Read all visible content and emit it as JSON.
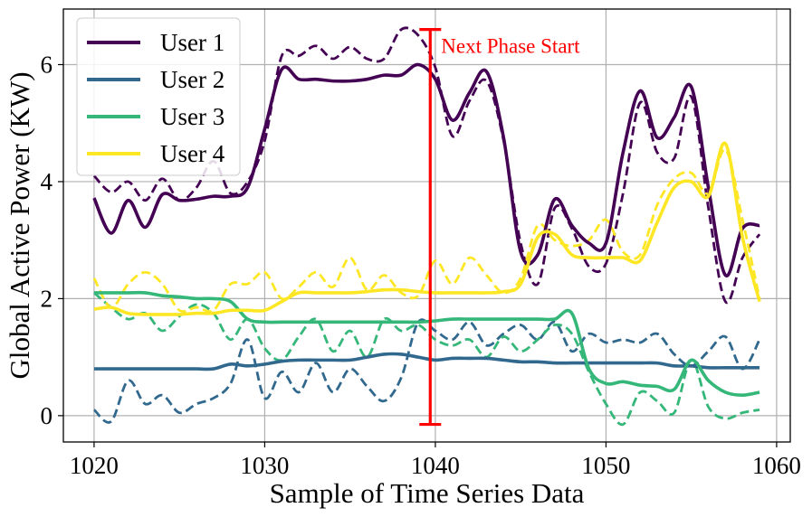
{
  "chart_data": {
    "type": "line",
    "title": "",
    "xlabel": "Sample of Time Series Data",
    "ylabel": "Global Active Power (KW)",
    "xlim": [
      1018.2,
      1060.8
    ],
    "ylim": [
      -0.45,
      6.95
    ],
    "xticks": [
      1020,
      1030,
      1040,
      1050,
      1060
    ],
    "yticks": [
      0,
      2,
      4,
      6
    ],
    "grid": true,
    "legend_position": "top-left",
    "x": [
      1020,
      1021,
      1022,
      1023,
      1024,
      1025,
      1026,
      1027,
      1028,
      1029,
      1030,
      1031,
      1032,
      1033,
      1034,
      1035,
      1036,
      1037,
      1038,
      1039,
      1040,
      1041,
      1042,
      1043,
      1044,
      1045,
      1046,
      1047,
      1048,
      1049,
      1050,
      1051,
      1052,
      1053,
      1054,
      1055,
      1056,
      1057,
      1058,
      1059
    ],
    "series": [
      {
        "name": "User 1",
        "color": "#440154",
        "solid": [
          3.72,
          3.12,
          3.68,
          3.22,
          3.78,
          3.68,
          3.7,
          3.75,
          3.75,
          3.9,
          4.9,
          5.92,
          5.75,
          5.75,
          5.72,
          5.72,
          5.75,
          5.82,
          5.82,
          6.0,
          5.75,
          5.05,
          5.52,
          5.88,
          4.75,
          2.8,
          2.75,
          3.7,
          3.25,
          2.95,
          2.95,
          4.5,
          5.55,
          4.75,
          5.1,
          5.62,
          3.9,
          2.4,
          3.2,
          3.25
        ],
        "dashed": [
          4.1,
          3.82,
          4.0,
          3.68,
          4.05,
          3.68,
          3.9,
          4.35,
          3.8,
          4.0,
          4.7,
          6.15,
          6.15,
          6.32,
          6.1,
          6.3,
          6.1,
          6.1,
          6.6,
          6.5,
          5.95,
          4.78,
          5.38,
          5.72,
          4.7,
          2.95,
          2.25,
          3.55,
          3.2,
          2.55,
          2.6,
          3.8,
          5.35,
          4.5,
          4.4,
          5.45,
          3.55,
          1.95,
          2.7,
          3.1
        ]
      },
      {
        "name": "User 2",
        "color": "#31688e",
        "solid": [
          0.8,
          0.8,
          0.8,
          0.8,
          0.8,
          0.8,
          0.8,
          0.8,
          0.88,
          0.85,
          0.88,
          0.93,
          0.95,
          0.95,
          0.95,
          0.95,
          1.0,
          1.05,
          1.05,
          1.0,
          0.95,
          0.98,
          0.98,
          0.98,
          0.95,
          0.92,
          0.92,
          0.9,
          0.9,
          0.9,
          0.9,
          0.9,
          0.9,
          0.9,
          0.85,
          0.85,
          0.82,
          0.82,
          0.82,
          0.82
        ],
        "dashed": [
          0.1,
          -0.1,
          0.6,
          0.2,
          0.35,
          0.05,
          0.2,
          0.3,
          0.55,
          1.3,
          0.3,
          0.75,
          0.4,
          0.9,
          0.4,
          0.8,
          0.5,
          0.25,
          0.65,
          1.6,
          1.45,
          1.3,
          1.6,
          1.2,
          1.4,
          1.55,
          1.3,
          1.6,
          1.1,
          1.4,
          1.25,
          1.3,
          1.25,
          1.4,
          1.05,
          0.85,
          1.1,
          1.35,
          0.8,
          1.3
        ]
      },
      {
        "name": "User 3",
        "color": "#35b779",
        "solid": [
          2.1,
          2.1,
          2.1,
          2.1,
          2.05,
          2.03,
          2.0,
          2.0,
          1.95,
          1.65,
          1.6,
          1.6,
          1.6,
          1.6,
          1.6,
          1.6,
          1.6,
          1.6,
          1.6,
          1.6,
          1.62,
          1.65,
          1.65,
          1.65,
          1.65,
          1.65,
          1.65,
          1.65,
          1.75,
          0.8,
          0.55,
          0.58,
          0.52,
          0.5,
          0.45,
          0.95,
          0.6,
          0.4,
          0.35,
          0.4
        ],
        "dashed": [
          2.1,
          1.85,
          1.65,
          1.75,
          1.45,
          1.7,
          1.9,
          1.75,
          1.3,
          1.65,
          1.15,
          0.95,
          1.35,
          1.65,
          1.1,
          1.45,
          1.0,
          1.65,
          1.45,
          1.55,
          1.3,
          1.2,
          1.3,
          1.0,
          1.35,
          1.1,
          1.3,
          1.55,
          1.4,
          0.75,
          0.2,
          -0.15,
          0.4,
          0.25,
          0.05,
          0.95,
          0.15,
          -0.05,
          0.05,
          0.1
        ]
      },
      {
        "name": "User 4",
        "color": "#fde725",
        "solid": [
          1.82,
          1.85,
          1.75,
          1.73,
          1.73,
          1.73,
          1.75,
          1.75,
          1.8,
          1.8,
          1.8,
          1.95,
          2.1,
          2.1,
          2.1,
          2.1,
          2.12,
          2.15,
          2.15,
          2.12,
          2.1,
          2.1,
          2.1,
          2.1,
          2.12,
          2.25,
          3.05,
          3.1,
          2.75,
          2.7,
          2.7,
          2.7,
          2.65,
          3.3,
          3.9,
          4.0,
          3.75,
          4.65,
          3.05,
          1.95
        ],
        "dashed": [
          2.35,
          1.85,
          2.25,
          2.45,
          2.25,
          1.8,
          1.85,
          1.8,
          2.25,
          2.25,
          2.45,
          2.0,
          2.2,
          2.45,
          2.2,
          2.7,
          2.15,
          2.4,
          2.1,
          2.05,
          2.65,
          2.25,
          2.7,
          2.4,
          2.1,
          2.35,
          3.25,
          3.0,
          2.9,
          3.0,
          3.35,
          2.8,
          2.75,
          3.6,
          4.05,
          4.15,
          3.8,
          4.55,
          3.35,
          2.0
        ]
      }
    ],
    "annotations": [
      {
        "text": "Next Phase Start",
        "color": "#ff0000",
        "x": 1039.7,
        "y_range": [
          -0.15,
          6.6
        ]
      }
    ]
  }
}
